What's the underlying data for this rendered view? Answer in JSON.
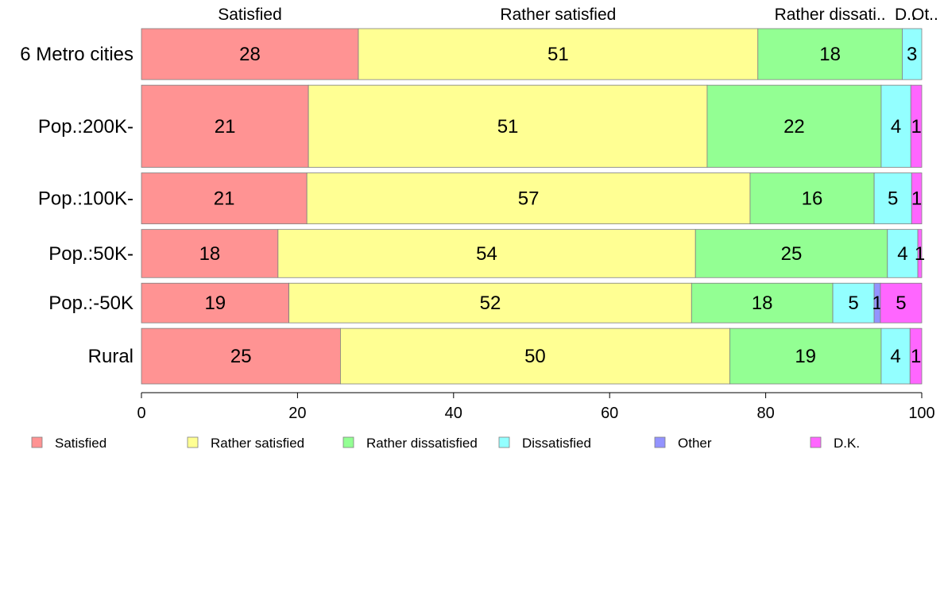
{
  "chart_data": {
    "type": "bar",
    "orientation": "horizontal",
    "stacked": true,
    "normalized": true,
    "title": "",
    "xlabel": "",
    "ylabel": "",
    "xlim": [
      0,
      100
    ],
    "x_ticks": [
      "0",
      "20",
      "40",
      "60",
      "80",
      "100"
    ],
    "grid": false,
    "legend_position": "bottom",
    "top_labels": [
      "Satisfied",
      "Rather satisfied",
      "Rather dissati..",
      "D..",
      "Ot.."
    ],
    "categories": [
      "6 Metro cities",
      "Pop.:200K-",
      "Pop.:100K-",
      "Pop.:50K-",
      "Pop.:-50K",
      "Rural"
    ],
    "row_weights": [
      0.9,
      1.45,
      0.9,
      0.85,
      0.7,
      0.98
    ],
    "series": [
      {
        "name": "Satisfied",
        "color": "#ff9393",
        "values": [
          27.8,
          21.4,
          21.2,
          17.5,
          18.9,
          25.5
        ],
        "labels": [
          "28",
          "21",
          "21",
          "18",
          "19",
          "25"
        ]
      },
      {
        "name": "Rather satisfied",
        "color": "#ffff93",
        "values": [
          51.2,
          51.1,
          56.8,
          53.5,
          51.6,
          49.9
        ],
        "labels": [
          "51",
          "51",
          "57",
          "54",
          "52",
          "50"
        ]
      },
      {
        "name": "Rather dissatisfied",
        "color": "#93ff93",
        "values": [
          18.5,
          22.3,
          15.9,
          24.6,
          18.1,
          19.4
        ],
        "labels": [
          "18",
          "22",
          "16",
          "25",
          "18",
          "19"
        ]
      },
      {
        "name": "Dissatisfied",
        "color": "#93ffff",
        "values": [
          2.5,
          3.8,
          4.8,
          3.9,
          5.3,
          3.7
        ],
        "labels": [
          "3",
          "4",
          "5",
          "4",
          "5",
          "4"
        ]
      },
      {
        "name": "Other",
        "color": "#9393ff",
        "values": [
          0,
          0,
          0,
          0,
          0.8,
          0
        ],
        "labels": [
          "",
          "",
          "",
          "",
          "1",
          ""
        ]
      },
      {
        "name": "D.K.",
        "color": "#ff66ff",
        "values": [
          0,
          1.4,
          1.3,
          0.5,
          5.3,
          1.5
        ],
        "labels": [
          "",
          "1",
          "1",
          "1",
          "5",
          "1"
        ]
      }
    ]
  }
}
